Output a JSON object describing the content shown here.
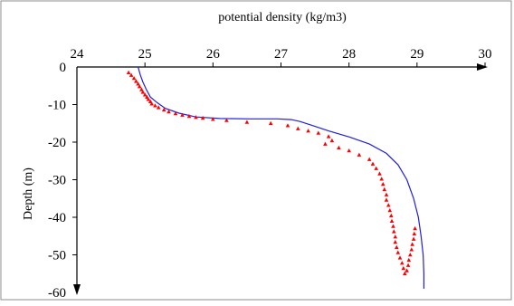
{
  "chart_data": {
    "type": "scatter",
    "x_axis_title": "potential density (kg/m3)",
    "y_axis_title": "Depth (m)",
    "x_ticks": [
      "24",
      "25",
      "26",
      "27",
      "28",
      "29",
      "30"
    ],
    "y_ticks": [
      "0",
      "-10",
      "-20",
      "-30",
      "-40",
      "-50",
      "-60"
    ],
    "xlim": [
      24,
      30
    ],
    "ylim": [
      -60,
      0
    ],
    "x_axis_position": "top",
    "grid": false,
    "legend": "none",
    "colors": {
      "line": "#1f1fdd",
      "points": "#ff0000",
      "axes": "#000000",
      "frame": "#888888"
    },
    "series": [
      {
        "kind": "line",
        "x": [
          24.9,
          24.93,
          24.97,
          25.02,
          25.08,
          25.18,
          25.3,
          25.5,
          25.75,
          26.1,
          26.55,
          26.95,
          27.15,
          27.28,
          27.45,
          27.7,
          28.0,
          28.3,
          28.55,
          28.72,
          28.85,
          28.95,
          29.02,
          29.06,
          29.09,
          29.1,
          29.1
        ],
        "y": [
          0,
          -2,
          -4,
          -6,
          -8,
          -9.5,
          -11,
          -12.3,
          -13.3,
          -13.7,
          -13.8,
          -13.8,
          -14.0,
          -14.5,
          -15.5,
          -17,
          -18.6,
          -20.5,
          -23,
          -26,
          -30,
          -35,
          -40,
          -45,
          -50,
          -55,
          -59
        ]
      },
      {
        "kind": "points",
        "x": [
          24.76,
          24.8,
          24.84,
          24.87,
          24.9,
          24.92,
          24.95,
          24.97,
          25.0,
          25.03,
          25.05,
          25.08,
          25.1,
          25.15,
          25.2,
          25.28,
          25.35,
          25.45,
          25.55,
          25.65,
          25.75,
          25.85,
          26.0,
          26.2,
          26.5,
          26.85,
          27.1,
          27.25,
          27.4,
          27.55,
          27.7,
          27.75,
          27.65,
          27.85,
          28.0,
          28.15,
          28.3,
          28.35,
          28.4,
          28.45,
          28.48,
          28.5,
          28.52,
          28.55,
          28.55,
          28.58,
          28.6,
          28.62,
          28.63,
          28.65,
          28.66,
          28.68,
          28.68,
          28.7,
          28.72,
          28.75,
          28.78,
          28.8,
          28.82,
          28.85,
          28.87,
          28.88,
          28.9,
          28.92,
          28.93,
          28.95,
          28.96,
          28.97
        ],
        "y": [
          -1.5,
          -2.2,
          -3.0,
          -3.8,
          -4.5,
          -5.2,
          -6.0,
          -6.7,
          -7.4,
          -8.0,
          -8.6,
          -9.2,
          -9.8,
          -10.3,
          -10.8,
          -11.4,
          -11.9,
          -12.4,
          -12.8,
          -13.1,
          -13.4,
          -13.6,
          -13.9,
          -14.2,
          -14.7,
          -15.0,
          -15.6,
          -16.4,
          -17.0,
          -17.6,
          -18.5,
          -19.6,
          -20.5,
          -21.5,
          -22.3,
          -23.4,
          -24.6,
          -25.8,
          -27.0,
          -28.4,
          -29.8,
          -31.2,
          -32.6,
          -34.0,
          -35.4,
          -36.8,
          -38.2,
          -39.6,
          -41.0,
          -42.4,
          -43.8,
          -45.2,
          -46.6,
          -48.0,
          -49.4,
          -50.8,
          -52.2,
          -53.6,
          -55.0,
          -54.2,
          -52.8,
          -51.4,
          -50.0,
          -48.6,
          -47.2,
          -45.8,
          -44.4,
          -43.0
        ]
      }
    ]
  }
}
